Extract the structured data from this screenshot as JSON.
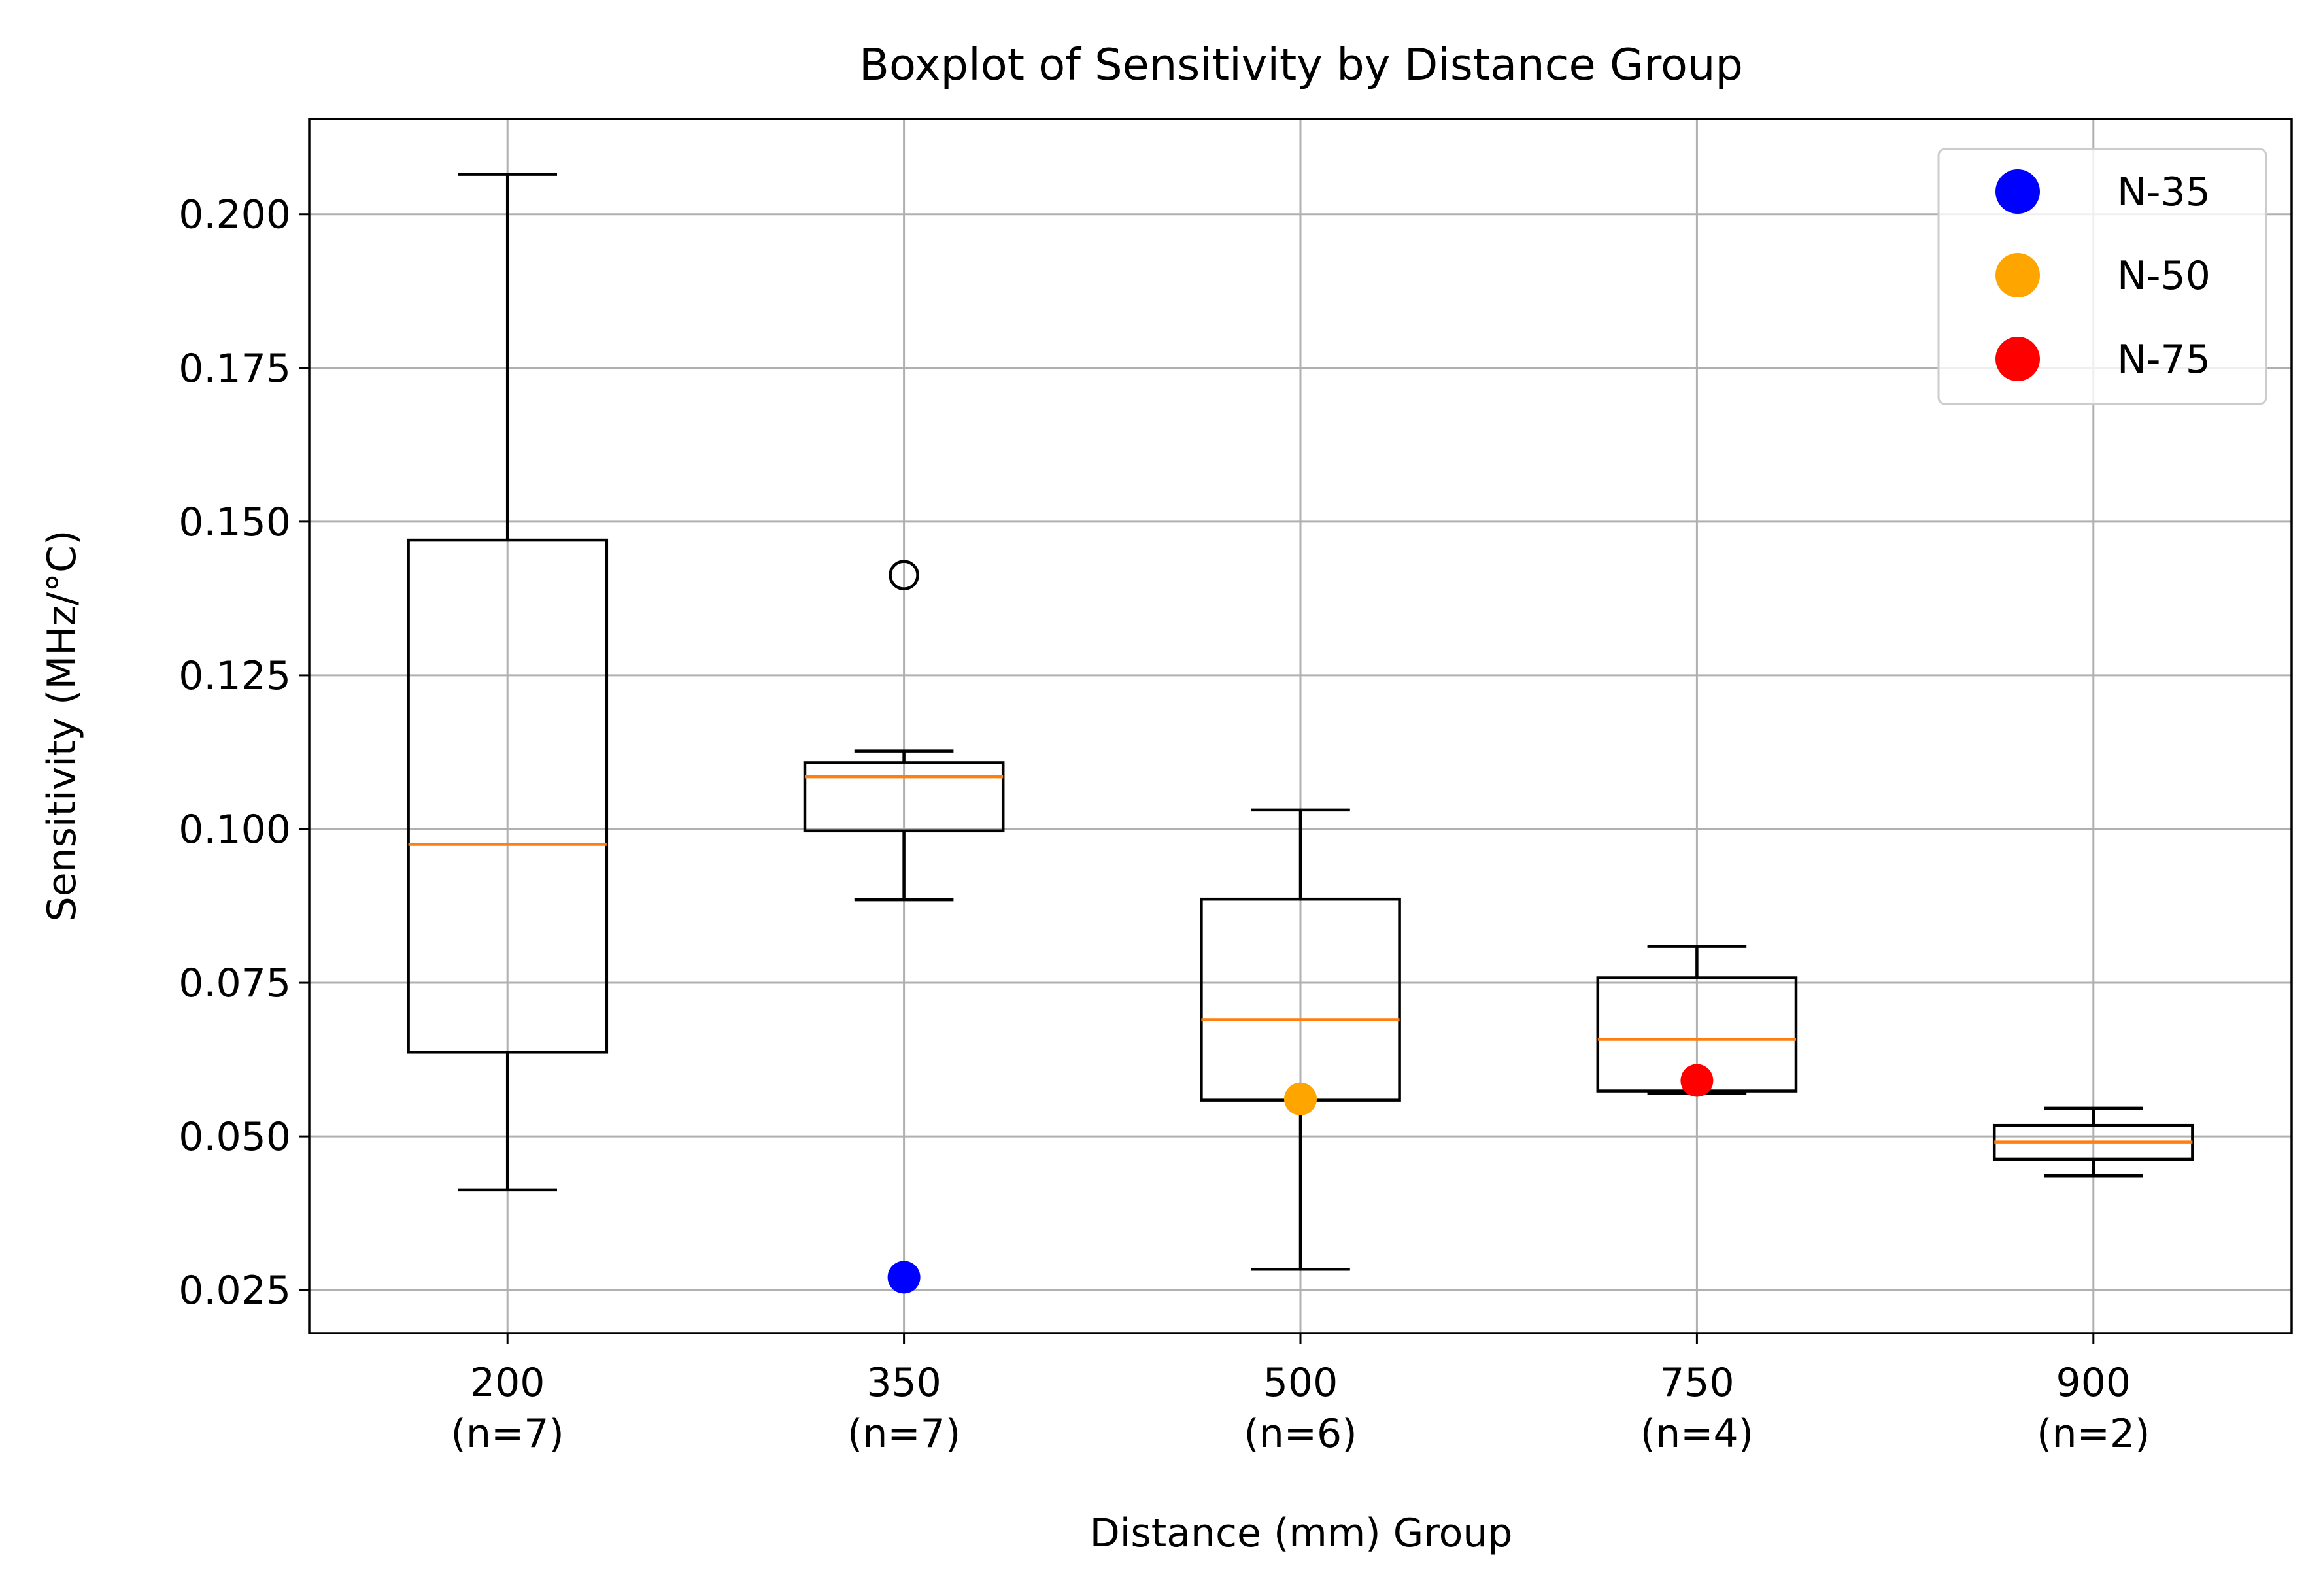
{
  "chart_data": {
    "type": "boxplot",
    "title": "Boxplot of Sensitivity by Distance Group",
    "xlabel": "Distance (mm) Group",
    "ylabel": "Sensitivity (MHz/°C)",
    "ylim": [
      0.018,
      0.2155
    ],
    "yticks": [
      "0.025",
      "0.050",
      "0.075",
      "0.100",
      "0.125",
      "0.150",
      "0.175",
      "0.200"
    ],
    "grid": true,
    "legend_position": "top-right",
    "groups": [
      {
        "label": "200",
        "count_label": "(n=7)",
        "whisker_low": 0.0413,
        "q1": 0.0637,
        "median": 0.0975,
        "q3": 0.147,
        "whisker_high": 0.2065,
        "outliers": []
      },
      {
        "label": "350",
        "count_label": "(n=7)",
        "whisker_low": 0.0885,
        "q1": 0.0997,
        "median": 0.1085,
        "q3": 0.1108,
        "whisker_high": 0.1127,
        "outliers": [
          0.1413
        ]
      },
      {
        "label": "500",
        "count_label": "(n=6)",
        "whisker_low": 0.0284,
        "q1": 0.0559,
        "median": 0.069,
        "q3": 0.0886,
        "whisker_high": 0.1031,
        "outliers": []
      },
      {
        "label": "750",
        "count_label": "(n=4)",
        "whisker_low": 0.057,
        "q1": 0.0574,
        "median": 0.0658,
        "q3": 0.0758,
        "whisker_high": 0.0809,
        "outliers": []
      },
      {
        "label": "900",
        "count_label": "(n=2)",
        "whisker_low": 0.0436,
        "q1": 0.0463,
        "median": 0.0491,
        "q3": 0.0518,
        "whisker_high": 0.0546,
        "outliers": []
      }
    ],
    "series": [
      {
        "name": "N-35",
        "color": "#0000ff",
        "group": "350",
        "value": 0.0271
      },
      {
        "name": "N-50",
        "color": "#ffa500",
        "group": "500",
        "value": 0.0561
      },
      {
        "name": "N-75",
        "color": "#ff0000",
        "group": "750",
        "value": 0.0591
      }
    ],
    "median_color": "#ff7f0e",
    "box_color": "#000000",
    "grid_color": "#b0b0b0"
  }
}
